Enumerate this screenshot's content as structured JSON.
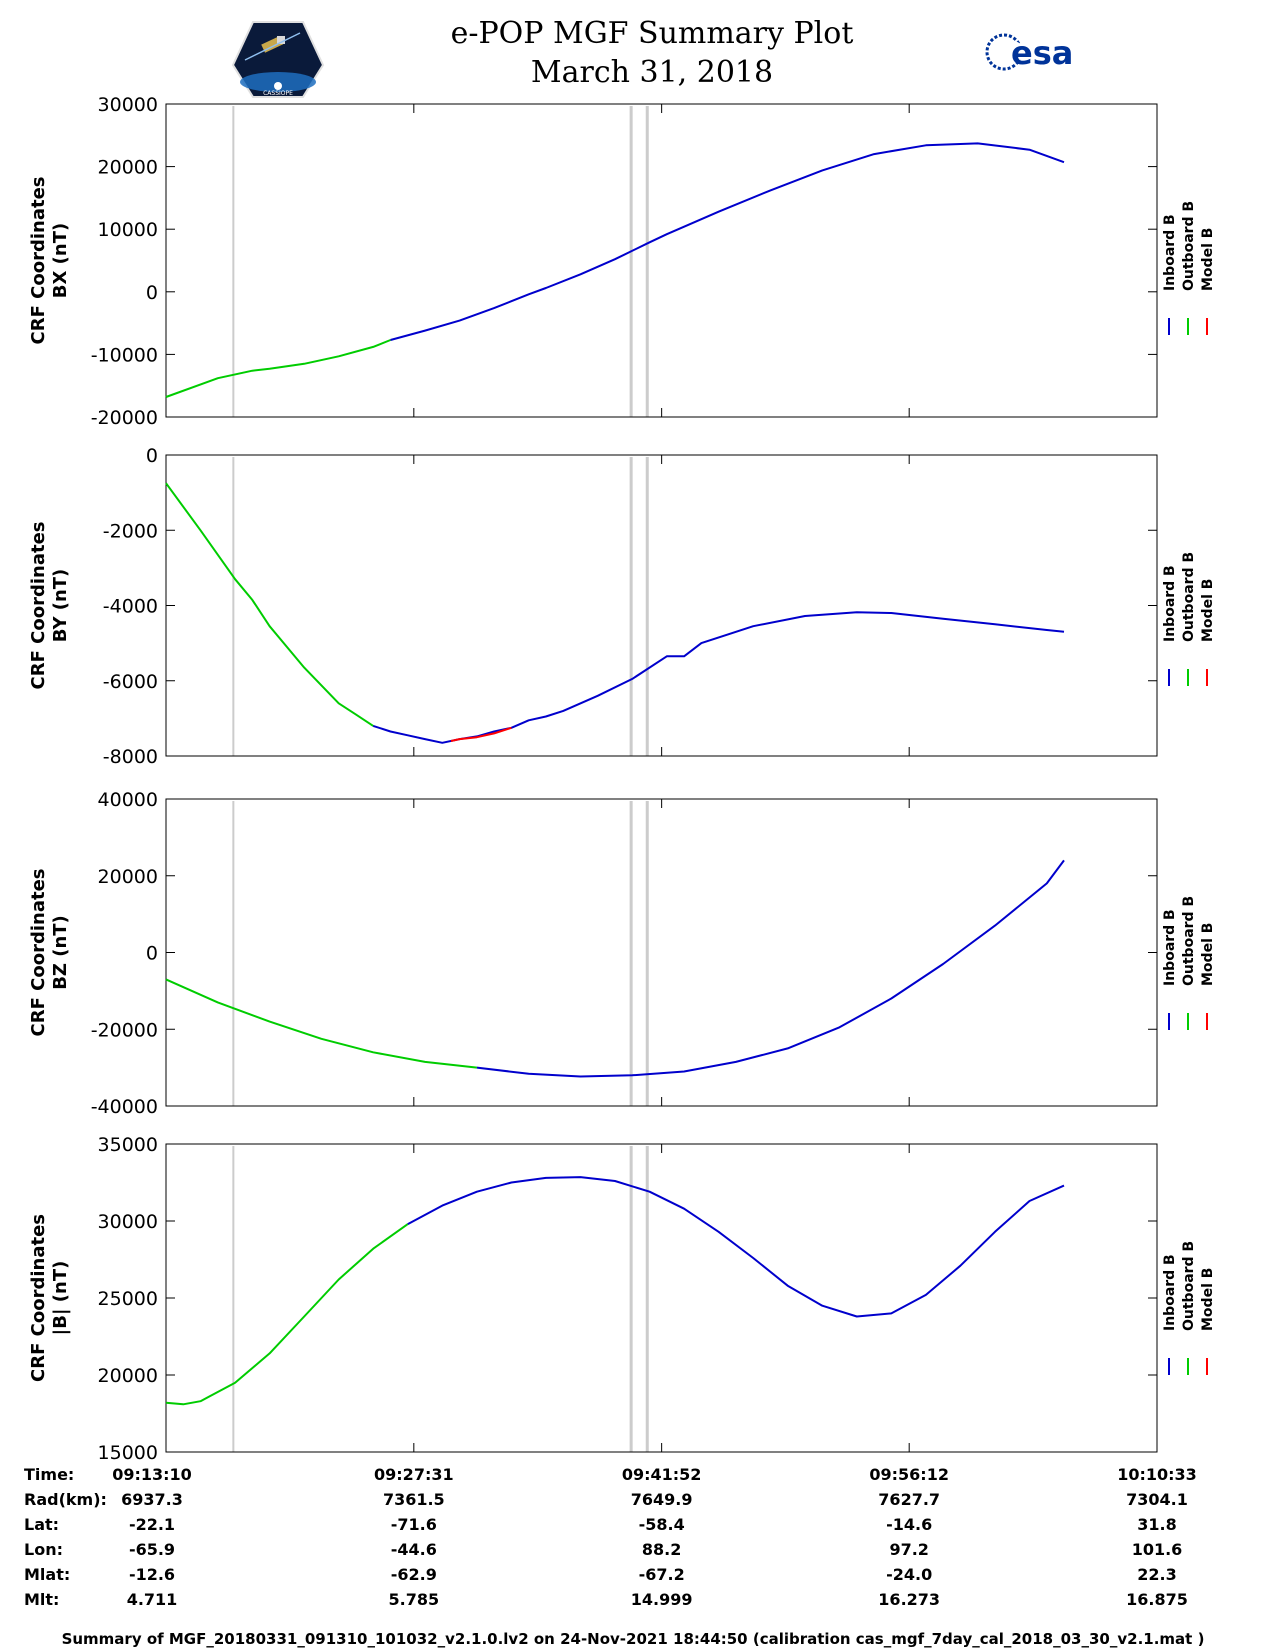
{
  "header": {
    "title_line1": "e-POP MGF Summary Plot",
    "title_line2": "March 31, 2018",
    "left_logo": "cassiope-satellite-logo",
    "left_logo_text": "CASSIOPE",
    "right_logo_text": "esa"
  },
  "legend": {
    "labels": [
      "Inboard B",
      "Outboard B",
      "Model B"
    ],
    "colors": [
      "#0000cc",
      "#00cc00",
      "#ff0000"
    ]
  },
  "vertical_markers_x": [
    "09:17:04",
    "09:40:06",
    "09:41:02"
  ],
  "chart_data": [
    {
      "type": "line",
      "ylabel_line1": "CRF Coordinates",
      "ylabel_line2": "BX (nT)",
      "ylim": [
        -20000,
        30000
      ],
      "yticks": [
        -20000,
        -10000,
        0,
        10000,
        20000,
        30000
      ],
      "ytick_labels": [
        "-20000",
        "-10000",
        "0",
        "10000",
        "20000",
        "30000"
      ],
      "series": [
        {
          "name": "Outboard B",
          "color": "#00cc00",
          "points": [
            [
              0,
              -16800
            ],
            [
              3,
              -13800
            ],
            [
              5,
              -12600
            ],
            [
              6,
              -12300
            ],
            [
              8,
              -11500
            ],
            [
              10,
              -10300
            ],
            [
              12,
              -8800
            ],
            [
              13,
              -7700
            ]
          ]
        },
        {
          "name": "Inboard B",
          "color": "#0000cc",
          "points": [
            [
              13,
              -7700
            ],
            [
              15,
              -6200
            ],
            [
              17,
              -4600
            ],
            [
              19,
              -2600
            ],
            [
              20,
              -1500
            ],
            [
              21,
              -400
            ],
            [
              22,
              600
            ],
            [
              24,
              2800
            ],
            [
              26,
              5200
            ],
            [
              28,
              7900
            ],
            [
              29,
              9200
            ],
            [
              30,
              10400
            ],
            [
              32,
              12800
            ],
            [
              35,
              16200
            ],
            [
              38,
              19400
            ],
            [
              41,
              22000
            ],
            [
              44,
              23400
            ],
            [
              47,
              23700
            ],
            [
              50,
              22700
            ],
            [
              52,
              20700
            ]
          ]
        }
      ]
    },
    {
      "type": "line",
      "ylabel_line1": "CRF Coordinates",
      "ylabel_line2": "BY (nT)",
      "ylim": [
        -8000,
        0
      ],
      "yticks": [
        -8000,
        -6000,
        -4000,
        -2000,
        0
      ],
      "ytick_labels": [
        "-8000",
        "-6000",
        "-4000",
        "-2000",
        "0"
      ],
      "series": [
        {
          "name": "Outboard B",
          "color": "#00cc00",
          "points": [
            [
              0,
              -750
            ],
            [
              2,
              -2000
            ],
            [
              4,
              -3300
            ],
            [
              5,
              -3850
            ],
            [
              6,
              -4550
            ],
            [
              8,
              -5650
            ],
            [
              10,
              -6600
            ],
            [
              11,
              -6900
            ],
            [
              12,
              -7200
            ]
          ]
        },
        {
          "name": "Inboard B",
          "color": "#0000cc",
          "points": [
            [
              12,
              -7200
            ],
            [
              13,
              -7350
            ],
            [
              14,
              -7450
            ],
            [
              15,
              -7550
            ],
            [
              16,
              -7650
            ],
            [
              17,
              -7550
            ],
            [
              18,
              -7480
            ],
            [
              19,
              -7350
            ],
            [
              20,
              -7250
            ],
            [
              21,
              -7050
            ],
            [
              22,
              -6950
            ],
            [
              23,
              -6800
            ],
            [
              25,
              -6400
            ],
            [
              27,
              -5950
            ],
            [
              29,
              -5350
            ],
            [
              30,
              -5350
            ],
            [
              31,
              -5000
            ],
            [
              34,
              -4550
            ],
            [
              37,
              -4280
            ],
            [
              40,
              -4180
            ],
            [
              42,
              -4200
            ],
            [
              45,
              -4350
            ],
            [
              48,
              -4500
            ],
            [
              51,
              -4650
            ],
            [
              52,
              -4700
            ]
          ]
        },
        {
          "name": "Model B",
          "color": "#ff0000",
          "points": [
            [
              16.5,
              -7600
            ],
            [
              17,
              -7550
            ],
            [
              18,
              -7500
            ],
            [
              19,
              -7400
            ],
            [
              20,
              -7250
            ]
          ]
        }
      ]
    },
    {
      "type": "line",
      "ylabel_line1": "CRF Coordinates",
      "ylabel_line2": "BZ (nT)",
      "ylim": [
        -40000,
        40000
      ],
      "yticks": [
        -40000,
        -20000,
        0,
        20000,
        40000
      ],
      "ytick_labels": [
        "-40000",
        "-20000",
        "0",
        "20000",
        "40000"
      ],
      "series": [
        {
          "name": "Outboard B",
          "color": "#00cc00",
          "points": [
            [
              0,
              -7000
            ],
            [
              3,
              -13000
            ],
            [
              6,
              -18000
            ],
            [
              9,
              -22500
            ],
            [
              12,
              -26000
            ],
            [
              15,
              -28500
            ],
            [
              18,
              -30000
            ]
          ]
        },
        {
          "name": "Inboard B",
          "color": "#0000cc",
          "points": [
            [
              18,
              -30000
            ],
            [
              21,
              -31600
            ],
            [
              24,
              -32300
            ],
            [
              27,
              -32000
            ],
            [
              30,
              -31000
            ],
            [
              33,
              -28500
            ],
            [
              36,
              -25000
            ],
            [
              39,
              -19500
            ],
            [
              42,
              -12000
            ],
            [
              45,
              -3000
            ],
            [
              48,
              7000
            ],
            [
              51,
              18000
            ],
            [
              52,
              24000
            ]
          ]
        }
      ]
    },
    {
      "type": "line",
      "ylabel_line1": "CRF Coordinates",
      "ylabel_line2": "|B| (nT)",
      "ylim": [
        15000,
        35000
      ],
      "yticks": [
        15000,
        20000,
        25000,
        30000,
        35000
      ],
      "ytick_labels": [
        "15000",
        "20000",
        "25000",
        "30000",
        "35000"
      ],
      "series": [
        {
          "name": "Outboard B",
          "color": "#00cc00",
          "points": [
            [
              0,
              18200
            ],
            [
              1,
              18100
            ],
            [
              2,
              18300
            ],
            [
              4,
              19500
            ],
            [
              6,
              21400
            ],
            [
              8,
              23800
            ],
            [
              10,
              26200
            ],
            [
              12,
              28200
            ],
            [
              14,
              29800
            ]
          ]
        },
        {
          "name": "Inboard B",
          "color": "#0000cc",
          "points": [
            [
              14,
              29800
            ],
            [
              16,
              31000
            ],
            [
              18,
              31900
            ],
            [
              20,
              32500
            ],
            [
              22,
              32800
            ],
            [
              24,
              32850
            ],
            [
              26,
              32600
            ],
            [
              28,
              31900
            ],
            [
              30,
              30800
            ],
            [
              32,
              29300
            ],
            [
              34,
              27600
            ],
            [
              36,
              25800
            ],
            [
              38,
              24500
            ],
            [
              40,
              23800
            ],
            [
              42,
              24000
            ],
            [
              44,
              25200
            ],
            [
              46,
              27100
            ],
            [
              48,
              29300
            ],
            [
              50,
              31300
            ],
            [
              52,
              32300
            ]
          ]
        }
      ]
    }
  ],
  "xaxis": {
    "tick_labels": [
      "09:13:10",
      "09:27:31",
      "09:41:52",
      "09:56:12",
      "10:10:33"
    ]
  },
  "info_table": {
    "row_labels": [
      "Time:",
      "Rad(km):",
      "Lat:",
      "Lon:",
      "Mlat:",
      "Mlt:"
    ],
    "columns": [
      [
        "09:13:10",
        "6937.3",
        "-22.1",
        "-65.9",
        "-12.6",
        "4.711"
      ],
      [
        "09:27:31",
        "7361.5",
        "-71.6",
        "-44.6",
        "-62.9",
        "5.785"
      ],
      [
        "09:41:52",
        "7649.9",
        "-58.4",
        "88.2",
        "-67.2",
        "14.999"
      ],
      [
        "09:56:12",
        "7627.7",
        "-14.6",
        "97.2",
        "-24.0",
        "16.273"
      ],
      [
        "10:10:33",
        "7304.1",
        "31.8",
        "101.6",
        "22.3",
        "16.875"
      ]
    ]
  },
  "footer": "Summary of MGF_20180331_091310_101032_v2.1.0.lv2 on 24-Nov-2021 18:44:50 (calibration cas_mgf_7day_cal_2018_03_30_v2.1.mat )"
}
